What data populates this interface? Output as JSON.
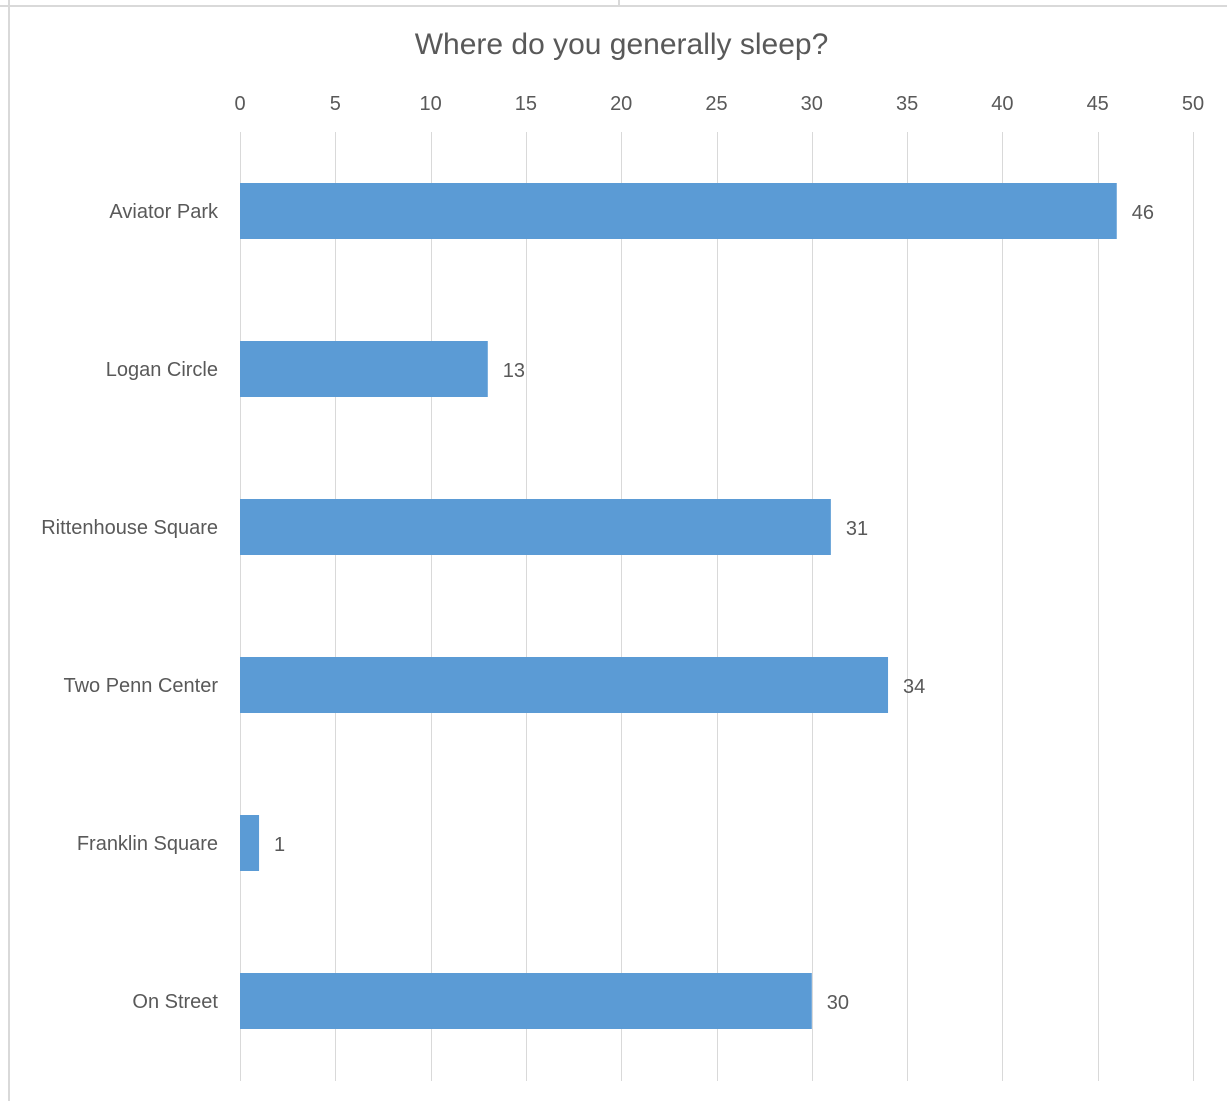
{
  "chart_data": {
    "type": "bar",
    "orientation": "horizontal",
    "title": "Where do you generally sleep?",
    "xlabel": "",
    "ylabel": "",
    "categories": [
      "Aviator Park",
      "Logan Circle",
      "Rittenhouse Square",
      "Two Penn Center",
      "Franklin Square",
      "On Street"
    ],
    "values": [
      46,
      13,
      31,
      34,
      1,
      30
    ],
    "xlim": [
      0,
      50
    ],
    "x_ticks": [
      0,
      5,
      10,
      15,
      20,
      25,
      30,
      35,
      40,
      45,
      50
    ],
    "x_tick_labels": [
      "0",
      "5",
      "10",
      "15",
      "20",
      "25",
      "30",
      "35",
      "40",
      "45",
      "50"
    ],
    "axis_position": "top",
    "grid": true,
    "data_labels": true,
    "legend": "none",
    "bar_color": "#5b9bd5",
    "grid_color": "#d9d9d9"
  }
}
